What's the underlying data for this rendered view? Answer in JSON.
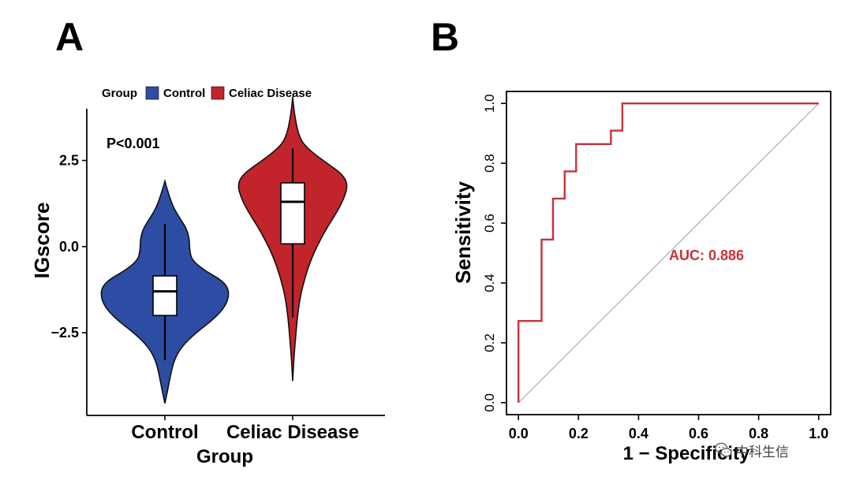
{
  "panels": {
    "a_label": "A",
    "b_label": "B"
  },
  "chart_data": [
    {
      "type": "violin",
      "title": "",
      "xlabel": "Group",
      "ylabel": "IGscore",
      "ylim": [
        -4.9,
        4.0
      ],
      "yticks": [
        -2.5,
        0.0,
        2.5
      ],
      "ytick_labels": [
        "−2.5",
        "0.0",
        "2.5"
      ],
      "categories": [
        "Control",
        "Celiac Disease"
      ],
      "legend": {
        "title": "Group",
        "position": "top",
        "entries": [
          "Control",
          "Celiac Disease"
        ]
      },
      "annotation": "P<0.001",
      "colors": [
        "#2c4da3",
        "#c2242b"
      ],
      "series": [
        {
          "name": "Control",
          "violin_min": -4.55,
          "violin_max": 1.9,
          "box": {
            "whisker_low": -3.3,
            "q1": -2.0,
            "median": -1.3,
            "q3": -0.85,
            "whisker_high": 0.65
          },
          "density": [
            [
              -4.55,
              0
            ],
            [
              -4.2,
              0.04
            ],
            [
              -3.8,
              0.08
            ],
            [
              -3.3,
              0.14
            ],
            [
              -2.9,
              0.26
            ],
            [
              -2.5,
              0.48
            ],
            [
              -2.1,
              0.76
            ],
            [
              -1.7,
              0.95
            ],
            [
              -1.3,
              1.0
            ],
            [
              -1.0,
              0.9
            ],
            [
              -0.7,
              0.62
            ],
            [
              -0.4,
              0.42
            ],
            [
              -0.1,
              0.38
            ],
            [
              0.2,
              0.38
            ],
            [
              0.5,
              0.34
            ],
            [
              0.8,
              0.24
            ],
            [
              1.1,
              0.14
            ],
            [
              1.4,
              0.08
            ],
            [
              1.7,
              0.03
            ],
            [
              1.9,
              0
            ]
          ]
        },
        {
          "name": "Celiac Disease",
          "violin_min": -3.9,
          "violin_max": 4.35,
          "box": {
            "whisker_low": -2.05,
            "q1": 0.08,
            "median": 1.3,
            "q3": 1.85,
            "whisker_high": 2.85
          },
          "density": [
            [
              -3.9,
              0
            ],
            [
              -3.3,
              0.02
            ],
            [
              -2.7,
              0.05
            ],
            [
              -2.1,
              0.08
            ],
            [
              -1.5,
              0.13
            ],
            [
              -0.9,
              0.22
            ],
            [
              -0.3,
              0.35
            ],
            [
              0.2,
              0.5
            ],
            [
              0.6,
              0.64
            ],
            [
              1.0,
              0.8
            ],
            [
              1.4,
              0.93
            ],
            [
              1.8,
              1.0
            ],
            [
              2.1,
              0.9
            ],
            [
              2.4,
              0.64
            ],
            [
              2.7,
              0.38
            ],
            [
              3.0,
              0.18
            ],
            [
              3.3,
              0.1
            ],
            [
              3.6,
              0.06
            ],
            [
              4.0,
              0.02
            ],
            [
              4.35,
              0
            ]
          ]
        }
      ]
    },
    {
      "type": "line",
      "title": "",
      "xlabel": "1 − Specificity",
      "ylabel": "Sensitivity",
      "xlim": [
        -0.04,
        1.04
      ],
      "ylim": [
        -0.04,
        1.04
      ],
      "xticks": [
        0.0,
        0.2,
        0.4,
        0.6,
        0.8,
        1.0
      ],
      "xtick_labels": [
        "0.0",
        "0.2",
        "0.4",
        "0.6",
        "0.8",
        "1.0"
      ],
      "yticks": [
        0.0,
        0.2,
        0.4,
        0.6,
        0.8,
        1.0
      ],
      "ytick_labels": [
        "0.0",
        "0.2",
        "0.4",
        "0.6",
        "0.8",
        "1.0"
      ],
      "annotation": "AUC: 0.886",
      "series": [
        {
          "name": "ROC",
          "color": "#c8323a",
          "x": [
            0.0,
            0.0,
            0.077,
            0.077,
            0.115,
            0.115,
            0.154,
            0.154,
            0.192,
            0.192,
            0.308,
            0.308,
            0.346,
            0.346,
            1.0
          ],
          "y": [
            0.0,
            0.273,
            0.273,
            0.545,
            0.545,
            0.682,
            0.682,
            0.773,
            0.773,
            0.864,
            0.864,
            0.909,
            0.909,
            1.0,
            1.0
          ]
        },
        {
          "name": "reference",
          "color": "#b8b8b8",
          "x": [
            0.0,
            1.0
          ],
          "y": [
            0.0,
            1.0
          ]
        }
      ]
    }
  ],
  "watermark": {
    "text": "中科生信",
    "icon": "wechat-icon"
  }
}
